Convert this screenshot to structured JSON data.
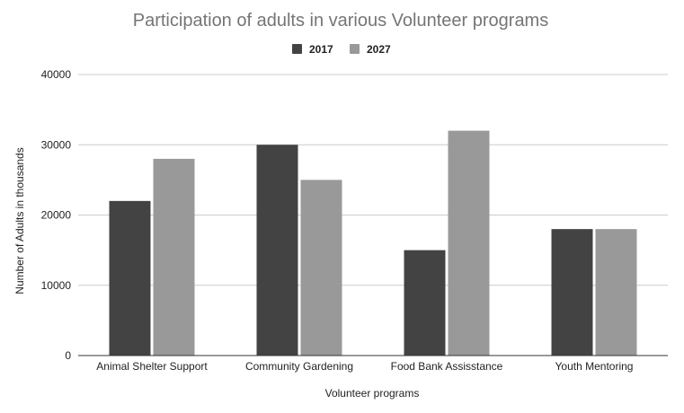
{
  "chart_data": {
    "type": "bar",
    "title": "Participation of adults in various Volunteer programs",
    "xlabel": "Volunteer programs",
    "ylabel": "Number of Adults in thousands",
    "categories": [
      "Animal Shelter Support",
      "Community Gardening",
      "Food Bank Assisstance",
      "Youth Mentoring"
    ],
    "series": [
      {
        "name": "2017",
        "values": [
          22000,
          30000,
          15000,
          18000
        ],
        "color": "#434343"
      },
      {
        "name": "2027",
        "values": [
          28000,
          25000,
          32000,
          18000
        ],
        "color": "#999999"
      }
    ],
    "ylim": [
      0,
      40000
    ],
    "yticks": [
      "0",
      "10000",
      "20000",
      "30000",
      "40000"
    ],
    "grid": true,
    "legend_position": "top-center"
  }
}
